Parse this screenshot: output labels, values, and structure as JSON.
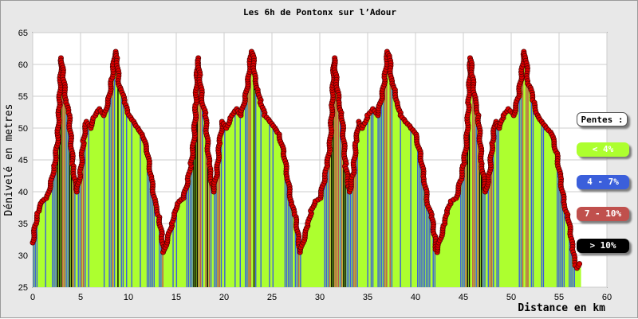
{
  "chart_data": {
    "type": "area",
    "title": "Les 6h de Pontonx sur l’Adour",
    "xlabel": "Distance en km",
    "ylabel": "Dénivelé en metres",
    "xlim": [
      0,
      60
    ],
    "ylim": [
      25,
      65
    ],
    "x_ticks": [
      "0",
      "5",
      "10",
      "15",
      "20",
      "25",
      "30",
      "35",
      "40",
      "45",
      "50",
      "55",
      "60"
    ],
    "y_ticks": [
      "25",
      "30",
      "35",
      "40",
      "45",
      "50",
      "55",
      "60",
      "65"
    ],
    "grid": true,
    "legend_position": "right",
    "legend": {
      "title": "Pentes :",
      "items": [
        {
          "label": "< 4%",
          "color": "#adff2f",
          "text_color": "#ffffff"
        },
        {
          "label": "4 - 7%",
          "color": "#3b5fdb",
          "text_color": "#ffffff"
        },
        {
          "label": "7 - 10%",
          "color": "#c0504d",
          "text_color": "#ffffff"
        },
        {
          "label": "> 10%",
          "color": "#000000",
          "text_color": "#ffffff"
        }
      ]
    },
    "lap_profile": {
      "x": [
        0,
        0.3,
        0.6,
        1.0,
        1.5,
        2.0,
        2.3,
        2.6,
        2.8,
        3.0,
        3.2,
        3.5,
        3.8,
        4.2,
        4.6,
        5.0,
        5.3,
        5.6,
        6.0,
        6.5,
        7.0,
        7.5,
        8.0,
        8.3,
        8.6,
        8.8,
        9.0,
        9.3,
        9.6,
        10.0,
        10.5,
        11.0,
        11.5,
        12.0,
        12.4,
        12.8,
        13.2,
        13.5,
        13.7
      ],
      "y": [
        32,
        35,
        37,
        38.5,
        39,
        42,
        44.5,
        48,
        54,
        61,
        58,
        54,
        52,
        44,
        40,
        43,
        48,
        51,
        50,
        52,
        53,
        52,
        55,
        58,
        62,
        61,
        57,
        56,
        54,
        52,
        51,
        50,
        49,
        46,
        42,
        38,
        36,
        33,
        30.5
      ]
    },
    "laps": {
      "count": 4,
      "length_km": 14.25
    },
    "series": [
      {
        "name": "",
        "color": "#adff2f"
      }
    ],
    "colors": {
      "fill": "#adff2f",
      "marker": "#dd0000",
      "marker_edge": "#550000",
      "plot_bg": "#ffffff",
      "grid": "#cccccc",
      "frame_bg": "#e8e8e8"
    }
  }
}
